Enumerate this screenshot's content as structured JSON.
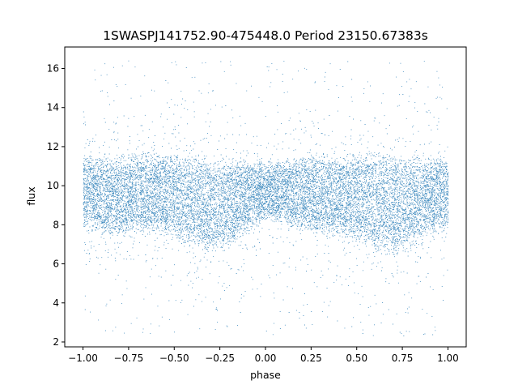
{
  "chart_data": {
    "type": "scatter",
    "title": "1SWASPJ141752.90-475448.0 Period 23150.67383s",
    "xlabel": "phase",
    "ylabel": "flux",
    "xlim": [
      -1.1,
      1.1
    ],
    "ylim": [
      1.75,
      17.1
    ],
    "x_ticks": [
      -1.0,
      -0.75,
      -0.5,
      -0.25,
      0.0,
      0.25,
      0.5,
      0.75,
      1.0
    ],
    "x_tick_labels": [
      "−1.00",
      "−0.75",
      "−0.50",
      "−0.25",
      "0.00",
      "0.25",
      "0.50",
      "0.75",
      "1.00"
    ],
    "y_ticks": [
      2,
      4,
      6,
      8,
      10,
      12,
      14,
      16
    ],
    "y_tick_labels": [
      "2",
      "4",
      "6",
      "8",
      "10",
      "12",
      "14",
      "16"
    ],
    "grid": false,
    "marker_color": "#1f77b4",
    "series": [
      {
        "phase": [
          -1.0,
          -0.9,
          -0.8,
          -0.7,
          -0.6,
          -0.5,
          -0.4,
          -0.3,
          -0.2,
          -0.1,
          0.0,
          0.1,
          0.2,
          0.3,
          0.4,
          0.5,
          0.6,
          0.7,
          0.8,
          0.9,
          1.0
        ],
        "flux_center": [
          9.3,
          9.2,
          9.4,
          9.6,
          9.7,
          9.6,
          9.3,
          8.9,
          9.2,
          9.6,
          9.8,
          9.8,
          9.5,
          9.2,
          9.3,
          9.5,
          9.4,
          9.0,
          9.2,
          9.4,
          9.3
        ],
        "flux_upper": [
          11.6,
          11.5,
          11.6,
          11.8,
          11.8,
          11.8,
          11.7,
          11.6,
          11.5,
          11.4,
          11.3,
          11.4,
          11.6,
          11.7,
          11.7,
          11.8,
          11.8,
          11.7,
          11.6,
          11.5,
          11.6
        ],
        "flux_lower": [
          7.7,
          7.5,
          7.3,
          7.5,
          7.5,
          7.2,
          6.7,
          6.3,
          6.7,
          7.5,
          8.2,
          8.0,
          7.5,
          7.4,
          7.3,
          7.0,
          6.6,
          6.2,
          6.7,
          7.4,
          7.7
        ],
        "flux_min_observed": 2.3,
        "flux_max_observed": 16.4
      }
    ]
  }
}
